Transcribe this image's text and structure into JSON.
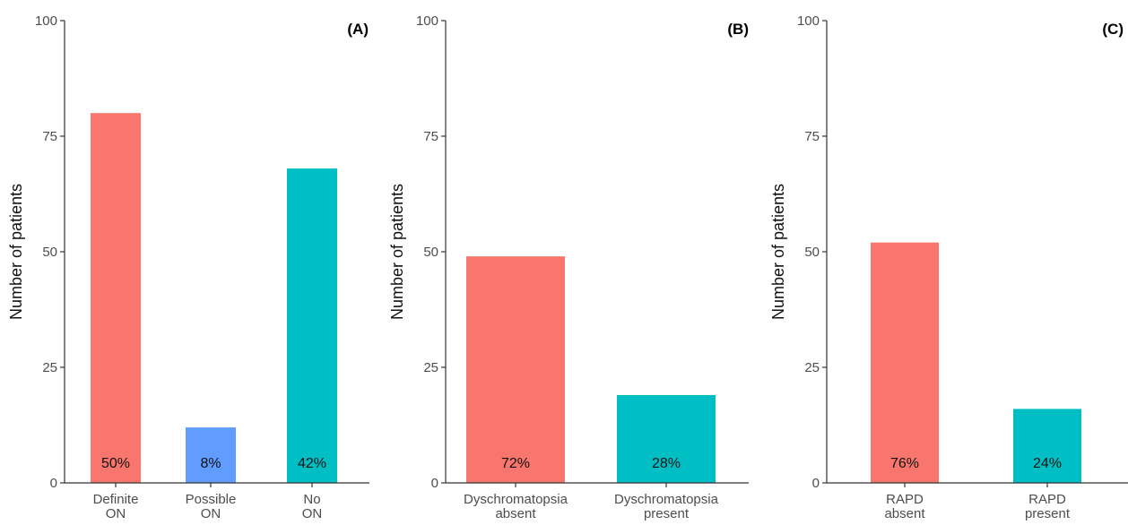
{
  "chart_data": [
    {
      "type": "bar",
      "panel_label": "(A)",
      "ylabel": "Number of patients",
      "ylim": [
        0,
        100
      ],
      "yticks": [
        0,
        25,
        50,
        75,
        100
      ],
      "grid": false,
      "categories": [
        [
          "Definite",
          "ON"
        ],
        [
          "Possible",
          "ON"
        ],
        [
          "No",
          "ON"
        ]
      ],
      "values": [
        80,
        12,
        68
      ],
      "data_labels": [
        "50%",
        "8%",
        "42%"
      ],
      "colors": [
        "#F8766D",
        "#619CFF",
        "#00BFC4"
      ]
    },
    {
      "type": "bar",
      "panel_label": "(B)",
      "ylabel": "Number of patients",
      "ylim": [
        0,
        100
      ],
      "yticks": [
        0,
        25,
        50,
        75,
        100
      ],
      "grid": false,
      "categories": [
        [
          "Dyschromatopsia",
          "absent"
        ],
        [
          "Dyschromatopsia",
          "present"
        ]
      ],
      "values": [
        49,
        19
      ],
      "data_labels": [
        "72%",
        "28%"
      ],
      "colors": [
        "#F8766D",
        "#00BFC4"
      ]
    },
    {
      "type": "bar",
      "panel_label": "(C)",
      "ylabel": "Number of patients",
      "ylim": [
        0,
        100
      ],
      "yticks": [
        0,
        25,
        50,
        75,
        100
      ],
      "grid": false,
      "categories": [
        [
          "RAPD",
          "absent"
        ],
        [
          "RAPD",
          "present"
        ]
      ],
      "values": [
        52,
        16
      ],
      "data_labels": [
        "76%",
        "24%"
      ],
      "colors": [
        "#F8766D",
        "#00BFC4"
      ]
    }
  ]
}
